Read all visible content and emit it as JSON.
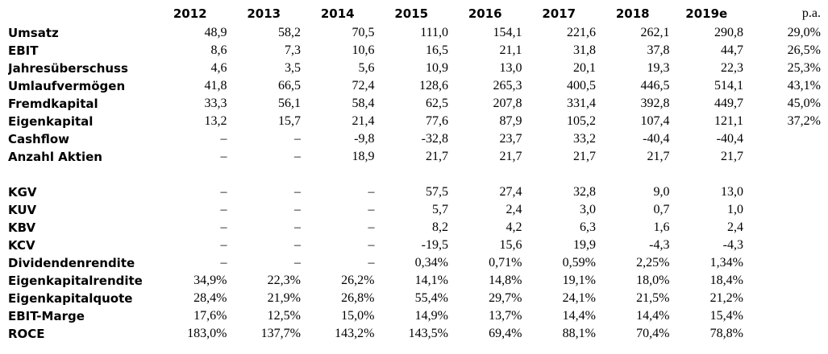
{
  "page": {
    "background_color": "#ffffff",
    "text_color": "#000000"
  },
  "table": {
    "header": {
      "metric_column_label": "",
      "years": [
        "2012",
        "2013",
        "2014",
        "2015",
        "2016",
        "2017",
        "2018",
        "2019e"
      ],
      "pa_label": "p.a."
    },
    "sections": [
      {
        "name": "absolute-figures",
        "rows": [
          {
            "label": "Umsatz",
            "values": [
              "48,9",
              "58,2",
              "70,5",
              "111,0",
              "154,1",
              "221,6",
              "262,1",
              "290,8"
            ],
            "pa": "29,0%"
          },
          {
            "label": "EBIT",
            "values": [
              "8,6",
              "7,3",
              "10,6",
              "16,5",
              "21,1",
              "31,8",
              "37,8",
              "44,7"
            ],
            "pa": "26,5%"
          },
          {
            "label": "Jahresüberschuss",
            "values": [
              "4,6",
              "3,5",
              "5,6",
              "10,9",
              "13,0",
              "20,1",
              "19,3",
              "22,3"
            ],
            "pa": "25,3%"
          },
          {
            "label": "Umlaufvermögen",
            "values": [
              "41,8",
              "66,5",
              "72,4",
              "128,6",
              "265,3",
              "400,5",
              "446,5",
              "514,1"
            ],
            "pa": "43,1%"
          },
          {
            "label": "Fremdkapital",
            "values": [
              "33,3",
              "56,1",
              "58,4",
              "62,5",
              "207,8",
              "331,4",
              "392,8",
              "449,7"
            ],
            "pa": "45,0%"
          },
          {
            "label": "Eigenkapital",
            "values": [
              "13,2",
              "15,7",
              "21,4",
              "77,6",
              "87,9",
              "105,2",
              "107,4",
              "121,1"
            ],
            "pa": "37,2%"
          },
          {
            "label": "Cashflow",
            "values": [
              "–",
              "–",
              "-9,8",
              "-32,8",
              "23,7",
              "33,2",
              "-40,4",
              "-40,4"
            ],
            "pa": ""
          },
          {
            "label": "Anzahl Aktien",
            "values": [
              "–",
              "–",
              "18,9",
              "21,7",
              "21,7",
              "21,7",
              "21,7",
              "21,7"
            ],
            "pa": ""
          }
        ]
      },
      {
        "name": "ratios",
        "rows": [
          {
            "label": "KGV",
            "values": [
              "–",
              "–",
              "–",
              "57,5",
              "27,4",
              "32,8",
              "9,0",
              "13,0"
            ],
            "pa": ""
          },
          {
            "label": "KUV",
            "values": [
              "–",
              "–",
              "–",
              "5,7",
              "2,4",
              "3,0",
              "0,7",
              "1,0"
            ],
            "pa": ""
          },
          {
            "label": "KBV",
            "values": [
              "–",
              "–",
              "–",
              "8,2",
              "4,2",
              "6,3",
              "1,6",
              "2,4"
            ],
            "pa": ""
          },
          {
            "label": "KCV",
            "values": [
              "–",
              "–",
              "–",
              "-19,5",
              "15,6",
              "19,9",
              "-4,3",
              "-4,3"
            ],
            "pa": ""
          },
          {
            "label": "Dividendenrendite",
            "values": [
              "–",
              "–",
              "–",
              "0,34%",
              "0,71%",
              "0,59%",
              "2,25%",
              "1,34%"
            ],
            "pa": ""
          },
          {
            "label": "Eigenkapitalrendite",
            "values": [
              "34,9%",
              "22,3%",
              "26,2%",
              "14,1%",
              "14,8%",
              "19,1%",
              "18,0%",
              "18,4%"
            ],
            "pa": ""
          },
          {
            "label": "Eigenkapitalquote",
            "values": [
              "28,4%",
              "21,9%",
              "26,8%",
              "55,4%",
              "29,7%",
              "24,1%",
              "21,5%",
              "21,2%"
            ],
            "pa": ""
          },
          {
            "label": "EBIT-Marge",
            "values": [
              "17,6%",
              "12,5%",
              "15,0%",
              "14,9%",
              "13,7%",
              "14,4%",
              "14,4%",
              "15,4%"
            ],
            "pa": ""
          },
          {
            "label": "ROCE",
            "values": [
              "183,0%",
              "137,7%",
              "143,2%",
              "143,5%",
              "69,4%",
              "88,1%",
              "70,4%",
              "78,8%"
            ],
            "pa": ""
          }
        ]
      }
    ]
  }
}
